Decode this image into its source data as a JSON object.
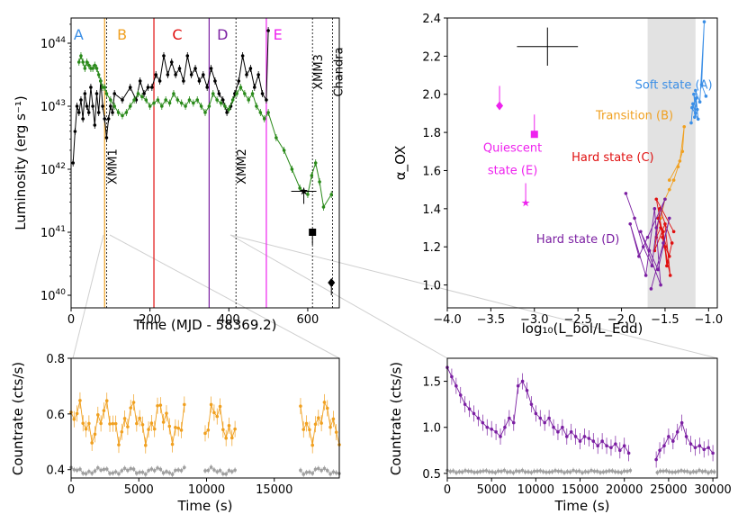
{
  "chart_data": [
    {
      "id": "lc",
      "type": "line",
      "xlabel": "Time (MJD - 58369.2)",
      "ylabel": "Luminosity (erg s⁻¹)",
      "xlim": [
        0,
        680
      ],
      "ylim_log10": [
        39.8,
        44.4
      ],
      "xticks": [
        0,
        200,
        400,
        600
      ],
      "ytick_labels": [
        "10^40",
        "10^41",
        "10^42",
        "10^43",
        "10^44"
      ],
      "phase_labels": [
        {
          "label": "A",
          "x": 10,
          "color": "#3a8ee6"
        },
        {
          "label": "B",
          "x": 120,
          "color": "#f0a020"
        },
        {
          "label": "C",
          "x": 260,
          "color": "#e01010"
        },
        {
          "label": "D",
          "x": 375,
          "color": "#7b1fa2"
        },
        {
          "label": "E",
          "x": 515,
          "color": "#ee22ee"
        }
      ],
      "phase_lines": [
        {
          "x": 85,
          "color": "#f0a020"
        },
        {
          "x": 210,
          "color": "#e01010"
        },
        {
          "x": 350,
          "color": "#7b1fa2"
        },
        {
          "x": 495,
          "color": "#ee22ee"
        }
      ],
      "obs_lines": [
        {
          "x": 90,
          "label": "XMM1"
        },
        {
          "x": 418,
          "label": "XMM2"
        },
        {
          "x": 612,
          "label": "XMM3"
        },
        {
          "x": 663,
          "label": "Chandra"
        }
      ],
      "series": [
        {
          "name": "black",
          "color": "#000000",
          "x": [
            5,
            10,
            15,
            20,
            25,
            30,
            35,
            40,
            45,
            50,
            55,
            60,
            65,
            70,
            75,
            80,
            85,
            90,
            95,
            100,
            105,
            110,
            130,
            150,
            165,
            175,
            185,
            195,
            205,
            215,
            225,
            235,
            245,
            255,
            265,
            275,
            285,
            295,
            305,
            315,
            325,
            335,
            345,
            355,
            365,
            375,
            385,
            395,
            405,
            415,
            425,
            435,
            445,
            455,
            465,
            475,
            485,
            495,
            500
          ],
          "log": [
            42.1,
            42.6,
            43.0,
            42.9,
            43.1,
            42.8,
            43.2,
            43.0,
            42.9,
            43.3,
            43.0,
            42.7,
            43.2,
            42.9,
            43.4,
            43.0,
            42.8,
            42.5,
            42.8,
            43.0,
            42.9,
            43.2,
            43.1,
            43.3,
            43.1,
            43.4,
            43.2,
            43.3,
            43.3,
            43.5,
            43.4,
            43.8,
            43.5,
            43.7,
            43.5,
            43.6,
            43.4,
            43.8,
            43.5,
            43.6,
            43.4,
            43.5,
            43.3,
            43.6,
            43.4,
            43.2,
            43.1,
            42.9,
            43.0,
            43.2,
            43.4,
            43.8,
            43.5,
            43.6,
            43.3,
            43.5,
            43.2,
            43.1,
            44.2
          ]
        },
        {
          "name": "green",
          "color": "#2a8a1a",
          "x": [
            20,
            25,
            30,
            35,
            40,
            45,
            50,
            55,
            60,
            65,
            70,
            75,
            80,
            85,
            90,
            100,
            110,
            120,
            130,
            140,
            150,
            160,
            170,
            180,
            190,
            200,
            210,
            220,
            230,
            240,
            250,
            260,
            270,
            280,
            290,
            300,
            310,
            320,
            330,
            340,
            350,
            360,
            370,
            380,
            390,
            400,
            410,
            420,
            430,
            440,
            450,
            460,
            470,
            480,
            490,
            500,
            520,
            540,
            560,
            580,
            600,
            610,
            620,
            630,
            640,
            660
          ],
          "log": [
            43.7,
            43.8,
            43.7,
            43.6,
            43.7,
            43.65,
            43.6,
            43.6,
            43.65,
            43.6,
            43.5,
            43.4,
            43.3,
            43.3,
            43.2,
            43.1,
            43.0,
            42.9,
            42.85,
            42.9,
            43.0,
            43.1,
            43.2,
            43.15,
            43.1,
            43.0,
            43.05,
            43.1,
            43.0,
            43.1,
            43.05,
            43.2,
            43.1,
            43.05,
            43.0,
            43.1,
            43.05,
            43.1,
            43.0,
            42.9,
            43.0,
            43.2,
            43.1,
            43.05,
            43.0,
            42.95,
            43.1,
            43.2,
            43.3,
            43.2,
            43.1,
            43.2,
            43.0,
            42.9,
            42.8,
            42.9,
            42.5,
            42.3,
            42.0,
            41.7,
            41.6,
            41.9,
            42.1,
            41.8,
            41.4,
            41.6
          ]
        }
      ],
      "extra_points": [
        {
          "name": "XMM3 point",
          "x": 612,
          "log": 41.0,
          "marker": "square"
        },
        {
          "name": "Chandra point",
          "x": 660,
          "log": 40.2,
          "marker": "diamond"
        },
        {
          "name": "E point",
          "x": 590,
          "log": 41.65,
          "marker": "star"
        }
      ]
    },
    {
      "id": "aox",
      "type": "scatter",
      "xlabel": "log₁₀(L_bol/L_Edd)",
      "ylabel": "α_OX",
      "xlim": [
        -4.0,
        -0.9
      ],
      "ylim": [
        0.88,
        2.4
      ],
      "xticks": [
        -4.0,
        -3.5,
        -3.0,
        -2.5,
        -2.0,
        -1.5,
        -1.0
      ],
      "xtick_labels": [
        "−4.0",
        "−3.5",
        "−3.0",
        "−2.5",
        "−2.0",
        "−1.5",
        "−1.0"
      ],
      "yticks": [
        1.0,
        1.2,
        1.4,
        1.6,
        1.8,
        2.0,
        2.2,
        2.4
      ],
      "ytick_labels": [
        "1.0",
        "1.2",
        "1.4",
        "1.6",
        "1.8",
        "2.0",
        "2.2",
        "2.4"
      ],
      "shaded_region": [
        -1.7,
        -1.15
      ],
      "state_labels": [
        {
          "label": "Soft state (A)",
          "x": -1.4,
          "y": 2.03,
          "color": "#3a8ee6"
        },
        {
          "label": "Transition (B)",
          "x": -1.85,
          "y": 1.87,
          "color": "#f0a020"
        },
        {
          "label": "Hard state (C)",
          "x": -2.1,
          "y": 1.65,
          "color": "#e01010"
        },
        {
          "label": "Quiescent",
          "x": -3.25,
          "y": 1.7,
          "color": "#ee22ee"
        },
        {
          "label": "state (E)",
          "x": -3.25,
          "y": 1.58,
          "color": "#ee22ee"
        },
        {
          "label": "Hard state (D)",
          "x": -2.5,
          "y": 1.22,
          "color": "#7b1fa2"
        }
      ],
      "series": [
        {
          "name": "Soft state (A)",
          "color": "#3a8ee6",
          "x": [
            -1.2,
            -1.18,
            -1.15,
            -1.17,
            -1.13,
            -1.16,
            -1.14,
            -1.19,
            -1.12,
            -1.15,
            -1.1,
            -1.05,
            -1.08,
            -1.03
          ],
          "y": [
            1.85,
            1.95,
            1.9,
            2.0,
            1.92,
            1.88,
            1.98,
            1.93,
            1.87,
            2.02,
            1.96,
            2.38,
            2.05,
            1.99
          ]
        },
        {
          "name": "Transition (B)",
          "color": "#f0a020",
          "x": [
            -1.55,
            -1.5,
            -1.45,
            -1.4,
            -1.35,
            -1.3,
            -1.28,
            -1.33,
            -1.45
          ],
          "y": [
            1.35,
            1.45,
            1.5,
            1.55,
            1.62,
            1.7,
            1.83,
            1.65,
            1.55
          ]
        },
        {
          "name": "Hard state (C)",
          "color": "#e01010",
          "x": [
            -1.6,
            -1.55,
            -1.5,
            -1.45,
            -1.58,
            -1.52,
            -1.48,
            -1.42,
            -1.56,
            -1.62,
            -1.5,
            -1.44,
            -1.53,
            -1.47,
            -1.6,
            -1.4
          ],
          "y": [
            1.25,
            1.3,
            1.2,
            1.15,
            1.35,
            1.28,
            1.1,
            1.22,
            1.4,
            1.18,
            1.32,
            1.05,
            1.25,
            1.12,
            1.45,
            1.28
          ]
        },
        {
          "name": "Hard state (D)",
          "color": "#7b1fa2",
          "x": [
            -1.95,
            -1.85,
            -1.75,
            -1.65,
            -1.6,
            -1.5,
            -1.7,
            -1.8,
            -1.9,
            -1.72,
            -1.62,
            -1.55,
            -1.78,
            -1.68,
            -1.58,
            -1.45,
            -1.52,
            -1.66
          ],
          "y": [
            1.48,
            1.35,
            1.2,
            1.1,
            1.3,
            1.45,
            1.25,
            1.15,
            1.32,
            1.05,
            1.4,
            1.0,
            1.28,
            1.18,
            1.08,
            1.35,
            1.22,
            0.98
          ]
        },
        {
          "name": "Quiescent (E)",
          "color": "#ee22ee",
          "x": [
            -3.4,
            -3.0,
            -3.1
          ],
          "y": [
            1.94,
            1.79,
            1.43
          ],
          "markers": [
            "diamond",
            "square",
            "star"
          ]
        }
      ],
      "error_cross": {
        "x": -2.85,
        "y": 2.25,
        "dx": 0.35,
        "dy": 0.1
      }
    },
    {
      "id": "cr1",
      "type": "line",
      "xlabel": "Time (s)",
      "ylabel": "Countrate (cts/s)",
      "xlim": [
        0,
        19800
      ],
      "ylim": [
        0.37,
        0.8
      ],
      "xticks": [
        0,
        5000,
        10000,
        15000
      ],
      "yticks": [
        0.4,
        0.6,
        0.8
      ],
      "ytick_labels": [
        "0.4",
        "0.6",
        "0.8"
      ],
      "gaps": [
        [
          8500,
          9700
        ],
        [
          12300,
          16800
        ]
      ],
      "series": [
        {
          "name": "source",
          "color": "#f0a020",
          "mean": 0.57,
          "amp": 0.06
        },
        {
          "name": "background",
          "color": "#a0a0a0",
          "mean": 0.395,
          "amp": 0.01
        }
      ]
    },
    {
      "id": "cr2",
      "type": "line",
      "xlabel": "Time (s)",
      "ylabel": "Countrate (cts/s)",
      "xlim": [
        0,
        30500
      ],
      "ylim": [
        0.45,
        1.75
      ],
      "xticks": [
        0,
        5000,
        10000,
        15000,
        20000,
        25000,
        30000
      ],
      "yticks": [
        0.5,
        1.0,
        1.5
      ],
      "ytick_labels": [
        "0.5",
        "1.0",
        "1.5"
      ],
      "gaps": [
        [
          21000,
          23600
        ]
      ],
      "series": [
        {
          "name": "source",
          "color": "#7b1fa2",
          "x": [
            0,
            500,
            1000,
            1500,
            2000,
            2500,
            3000,
            3500,
            4000,
            4500,
            5000,
            5500,
            6000,
            6500,
            7000,
            7500,
            8000,
            8500,
            9000,
            9500,
            10000,
            10500,
            11000,
            11500,
            12000,
            12500,
            13000,
            13500,
            14000,
            14500,
            15000,
            15500,
            16000,
            16500,
            17000,
            17500,
            18000,
            18500,
            19000,
            19500,
            20000,
            20500,
            23600,
            24000,
            24500,
            25000,
            25500,
            26000,
            26500,
            27000,
            27500,
            28000,
            28500,
            29000,
            29500,
            30000
          ],
          "y": [
            1.65,
            1.55,
            1.45,
            1.35,
            1.25,
            1.2,
            1.15,
            1.1,
            1.05,
            1.0,
            0.98,
            0.95,
            0.9,
            1.0,
            1.1,
            1.05,
            1.45,
            1.5,
            1.4,
            1.25,
            1.15,
            1.1,
            1.05,
            1.1,
            1.0,
            0.95,
            1.0,
            0.9,
            0.95,
            0.9,
            0.85,
            0.9,
            0.88,
            0.85,
            0.8,
            0.85,
            0.8,
            0.78,
            0.82,
            0.75,
            0.8,
            0.72,
            0.65,
            0.75,
            0.8,
            0.9,
            0.85,
            0.95,
            1.05,
            0.9,
            0.82,
            0.78,
            0.8,
            0.76,
            0.78,
            0.72
          ]
        },
        {
          "name": "background",
          "color": "#a0a0a0",
          "mean": 0.52,
          "amp": 0.01
        }
      ]
    }
  ]
}
